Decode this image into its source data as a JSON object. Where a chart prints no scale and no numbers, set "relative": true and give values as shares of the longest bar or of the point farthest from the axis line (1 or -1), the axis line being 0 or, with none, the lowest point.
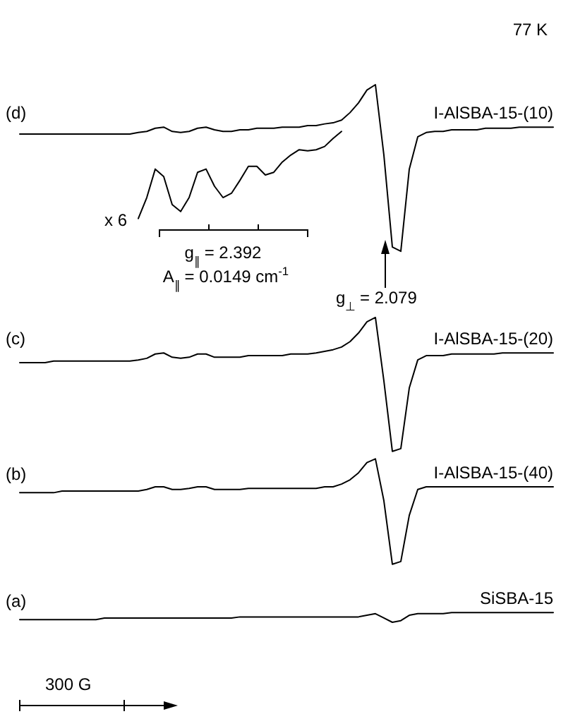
{
  "chart_data": {
    "type": "line",
    "relative": true,
    "title": "77 K",
    "categories": [
      null,
      null,
      null,
      null,
      null,
      null,
      null,
      null,
      null,
      null,
      null,
      null,
      null,
      null,
      null,
      null,
      null,
      null,
      null,
      null,
      null,
      null,
      null,
      null,
      null,
      null,
      null,
      null,
      null,
      null,
      null,
      null,
      null,
      null,
      null,
      null,
      null,
      null,
      null,
      null,
      null,
      null,
      null,
      null,
      null,
      null,
      null,
      null,
      null,
      null,
      null,
      null,
      null,
      null,
      null,
      null,
      null,
      null,
      null,
      null,
      null,
      null,
      null,
      null
    ],
    "series": [
      {
        "name": "I-AlSBA-15-(10)",
        "color": "#000000",
        "values": [
          0.908,
          0.908,
          0.908,
          0.908,
          0.908,
          0.908,
          0.908,
          0.908,
          0.908,
          0.908,
          0.908,
          0.908,
          0.908,
          0.908,
          0.911,
          0.913,
          0.919,
          0.921,
          0.913,
          0.911,
          0.913,
          0.919,
          0.921,
          0.916,
          0.913,
          0.913,
          0.916,
          0.916,
          0.919,
          0.919,
          0.919,
          0.921,
          0.921,
          0.921,
          0.924,
          0.924,
          0.927,
          0.929,
          0.934,
          0.948,
          0.966,
          0.99,
          1,
          0.869,
          0.698,
          0.69,
          0.843,
          0.903,
          0.911,
          0.913,
          0.913,
          0.916,
          0.916,
          0.916,
          0.916,
          0.919,
          0.919,
          0.919,
          0.919,
          0.921,
          0.921,
          0.921,
          0.921,
          0.921
        ]
      },
      {
        "color": "#000000",
        "values": [
          null,
          null,
          null,
          null,
          null,
          null,
          null,
          null,
          null,
          null,
          null,
          null,
          null,
          null,
          0.751,
          0.79,
          0.843,
          0.829,
          0.777,
          0.764,
          0.79,
          0.837,
          0.843,
          0.811,
          0.79,
          0.798,
          0.822,
          0.848,
          0.848,
          0.832,
          0.837,
          0.856,
          0.869,
          0.879,
          0.877,
          0.879,
          0.885,
          0.9,
          0.913,
          null,
          null,
          null,
          null,
          null,
          null,
          null,
          null,
          null,
          null,
          null,
          null,
          null,
          null,
          null,
          null,
          null,
          null,
          null,
          null,
          null,
          null,
          null,
          null,
          null
        ]
      },
      {
        "name": "I-AlSBA-15-(20)",
        "color": "#000000",
        "values": [
          0.483,
          0.483,
          0.483,
          0.483,
          0.486,
          0.486,
          0.486,
          0.486,
          0.486,
          0.486,
          0.486,
          0.486,
          0.486,
          0.486,
          0.488,
          0.491,
          0.499,
          0.501,
          0.493,
          0.491,
          0.493,
          0.499,
          0.499,
          0.493,
          0.493,
          0.493,
          0.493,
          0.496,
          0.496,
          0.496,
          0.496,
          0.496,
          0.499,
          0.499,
          0.499,
          0.501,
          0.504,
          0.507,
          0.512,
          0.522,
          0.538,
          0.559,
          0.567,
          0.449,
          0.318,
          0.323,
          0.436,
          0.488,
          0.496,
          0.496,
          0.496,
          0.499,
          0.499,
          0.499,
          0.499,
          0.499,
          0.499,
          0.501,
          0.501,
          0.501,
          0.501,
          0.501,
          0.501,
          0.501
        ]
      },
      {
        "name": "I-AlSBA-15-(40)",
        "color": "#000000",
        "values": [
          0.241,
          0.241,
          0.241,
          0.241,
          0.241,
          0.244,
          0.244,
          0.244,
          0.244,
          0.244,
          0.244,
          0.244,
          0.244,
          0.244,
          0.244,
          0.247,
          0.252,
          0.252,
          0.247,
          0.247,
          0.249,
          0.252,
          0.252,
          0.247,
          0.247,
          0.247,
          0.247,
          0.249,
          0.249,
          0.249,
          0.249,
          0.249,
          0.249,
          0.249,
          0.249,
          0.249,
          0.252,
          0.252,
          0.257,
          0.265,
          0.278,
          0.297,
          0.304,
          0.226,
          0.108,
          0.113,
          0.199,
          0.247,
          0.252,
          0.252,
          0.252,
          0.252,
          0.252,
          0.252,
          0.252,
          0.252,
          0.252,
          0.252,
          0.252,
          0.252,
          0.252,
          0.252,
          0.252,
          0.252
        ]
      },
      {
        "name": "SiSBA-15",
        "color": "#000000",
        "values": [
          0.005,
          0.005,
          0.005,
          0.005,
          0.005,
          0.005,
          0.005,
          0.005,
          0.005,
          0.005,
          0.008,
          0.008,
          0.008,
          0.008,
          0.008,
          0.008,
          0.008,
          0.008,
          0.008,
          0.008,
          0.008,
          0.008,
          0.008,
          0.008,
          0.008,
          0.008,
          0.01,
          0.01,
          0.01,
          0.01,
          0.01,
          0.01,
          0.01,
          0.01,
          0.01,
          0.01,
          0.01,
          0.01,
          0.01,
          0.01,
          0.01,
          0.013,
          0.016,
          0.008,
          0,
          0.003,
          0.013,
          0.016,
          0.016,
          0.016,
          0.016,
          0.018,
          0.018,
          0.018,
          0.018,
          0.018,
          0.018,
          0.018,
          0.018,
          0.018,
          0.018,
          0.018,
          0.018,
          0.018
        ]
      }
    ],
    "annotations": [
      "(d)",
      "(c)",
      "(b)",
      "(a)",
      "x 6",
      "g$_{∥}$ = 2.392",
      "A$_{∥}$ = 0.0149 cm$^{-1}$",
      "g$_{⊥}$ = 2.079",
      "300 G"
    ]
  }
}
